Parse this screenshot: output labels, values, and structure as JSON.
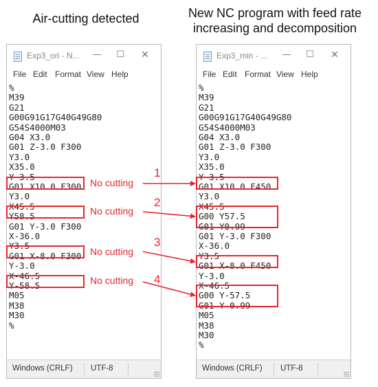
{
  "headings": {
    "left": "Air-cutting detected",
    "right_line1": "New NC program with feed rate",
    "right_line2": "increasing and decomposition"
  },
  "windows": {
    "left": {
      "title": "Exp3_ori - N...",
      "icon": "notepad-icon",
      "menu": [
        "File",
        "Edit",
        "Format",
        "View",
        "Help"
      ],
      "lines": [
        "%",
        "M39",
        "G21",
        "G00G91G17G40G49G80",
        "G54S4000M03",
        "G04 X3.0",
        "G01 Z-3.0 F300",
        "Y3.0",
        "X35.0",
        "Y-3.5",
        "G01 X10.0 F300",
        "Y3.0",
        "X45.5",
        "Y58.5",
        "G01 Y-3.0 F300",
        "X-36.0",
        "Y3.5",
        "G01 X-8.0 F300",
        "Y-3.0",
        "X-46.5",
        "Y-58.5",
        "M05",
        "M38",
        "M30",
        "%"
      ],
      "status_encoding_line": "Windows (CRLF)",
      "status_charset": "UTF-8"
    },
    "right": {
      "title": "Exp3_min - ...",
      "icon": "notepad-icon",
      "menu": [
        "File",
        "Edit",
        "Format",
        "View",
        "Help"
      ],
      "lines": [
        "%",
        "M39",
        "G21",
        "G00G91G17G40G49G80",
        "G54S4000M03",
        "G04 X3.0",
        "G01 Z-3.0 F300",
        "Y3.0",
        "X35.0",
        "Y-3.5",
        "G01 X10.0 F450",
        "Y3.0",
        "X45.5",
        "G00 Y57.5",
        "G01 Y0.99",
        "G01 Y-3.0 F300",
        "X-36.0",
        "Y3.5",
        "G01 X-8.0 F450",
        "Y-3.0",
        "X-46.5",
        "G00 Y-57.5",
        "G01 Y-0.99",
        "M05",
        "M38",
        "M30",
        "%"
      ],
      "status_encoding_line": "Windows (CRLF)",
      "status_charset": "UTF-8"
    }
  },
  "annotations": [
    {
      "number": "1",
      "note": "No cutting"
    },
    {
      "number": "2",
      "note": "No cutting"
    },
    {
      "number": "3",
      "note": "No cutting"
    },
    {
      "number": "4",
      "note": "No cutting"
    }
  ],
  "colors": {
    "highlight": "#e8232b",
    "text": "#222222",
    "window_border": "#b9b9b9"
  }
}
